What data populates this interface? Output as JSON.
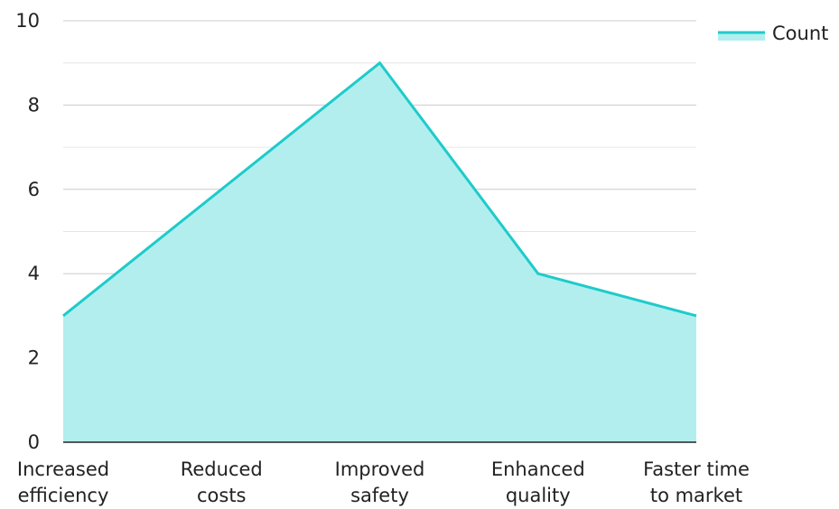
{
  "chart_data": {
    "type": "area",
    "categories": [
      [
        "Increased",
        "efficiency"
      ],
      [
        "Reduced",
        "costs"
      ],
      [
        "Improved",
        "safety"
      ],
      [
        "Enhanced",
        "quality"
      ],
      [
        "Faster time",
        "to market"
      ]
    ],
    "series": [
      {
        "name": "Count",
        "values": [
          3,
          6,
          9,
          4,
          3
        ],
        "line_color": "#1ecbcb",
        "fill_color": "#b2eeee"
      }
    ],
    "ylim": [
      0,
      10
    ],
    "yticks": [
      0,
      2,
      4,
      6,
      8,
      10
    ],
    "minor_gridlines": [
      1,
      3,
      5,
      7,
      9
    ],
    "grid": true,
    "legend": "top-right",
    "title": "",
    "xlabel": "",
    "ylabel": ""
  }
}
